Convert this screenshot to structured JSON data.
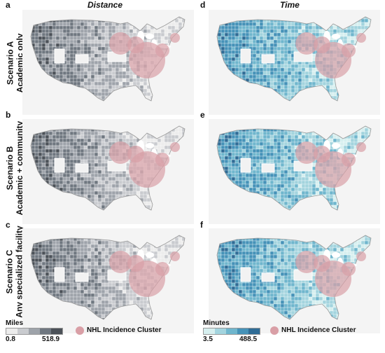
{
  "columns": {
    "left_title": "Distance",
    "right_title": "Time"
  },
  "rows": [
    {
      "line1": "Scenario A",
      "line2": "Academic only"
    },
    {
      "line1": "Scenario B",
      "line2": "Academic + community"
    },
    {
      "line1": "Scenario C",
      "line2": "Any specialized facility"
    }
  ],
  "panels": [
    {
      "letter": "a",
      "scheme": "distance"
    },
    {
      "letter": "d",
      "scheme": "time"
    },
    {
      "letter": "b",
      "scheme": "distance"
    },
    {
      "letter": "e",
      "scheme": "time"
    },
    {
      "letter": "c",
      "scheme": "distance"
    },
    {
      "letter": "f",
      "scheme": "time"
    }
  ],
  "legend_distance": {
    "title": "Miles",
    "min": "0.8",
    "max": "518.9",
    "colors": [
      "#ececec",
      "#c9cbcf",
      "#9ea3aa",
      "#6f7780",
      "#4b5158"
    ]
  },
  "legend_time": {
    "title": "Minutes",
    "min": "3.5",
    "max": "488.5",
    "colors": [
      "#d6efef",
      "#a3d4de",
      "#6fb6cd",
      "#4592b8",
      "#2f6c96"
    ]
  },
  "cluster": {
    "label": "NHL Incidence Cluster",
    "color": "#d99fa6"
  },
  "colors": {
    "background_land": "#e3e3e3",
    "borders": "#ffffff"
  }
}
